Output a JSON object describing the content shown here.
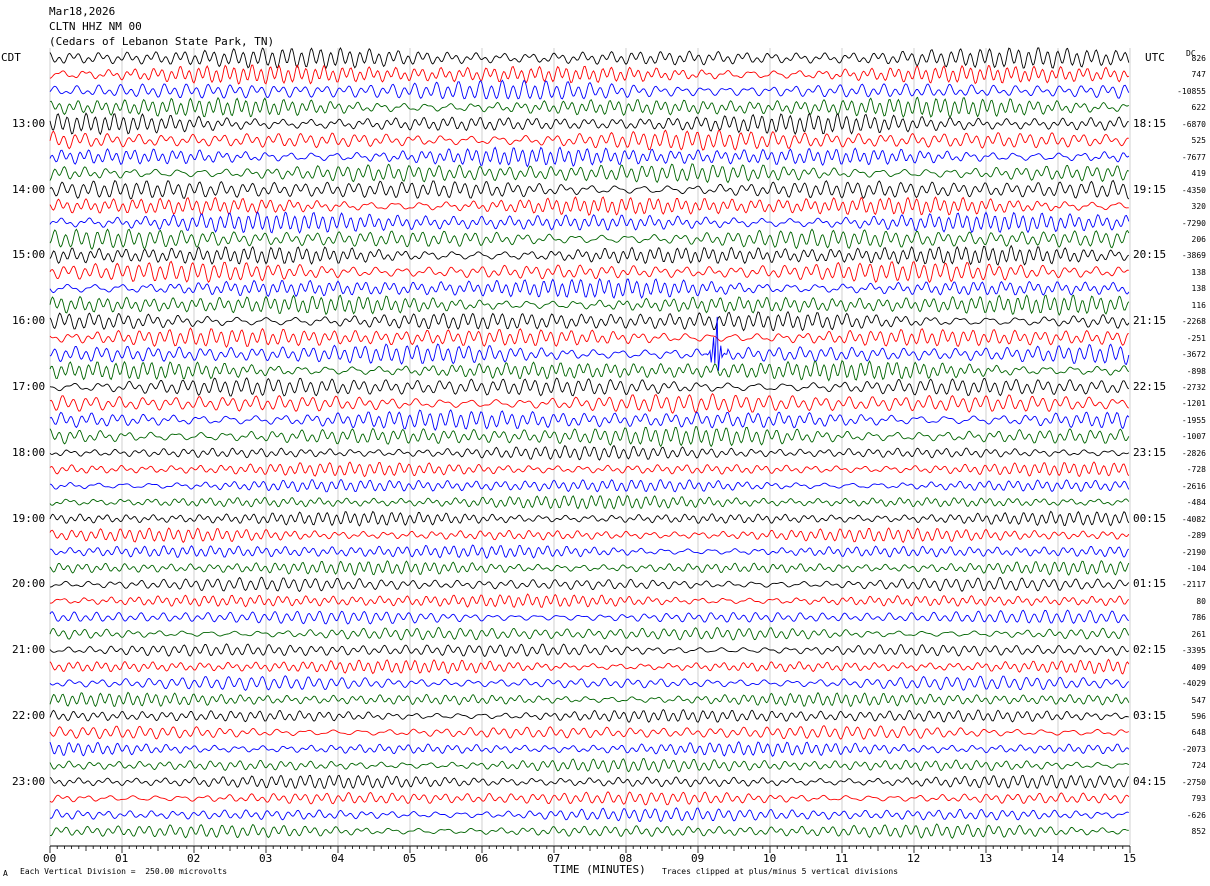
{
  "header": {
    "date": "Mar18,2026",
    "station": "CLTN HHZ NM 00",
    "location": "(Cedars of Lebanon State Park, TN)"
  },
  "left_axis_label": "CDT",
  "right_axis_label": "UTC",
  "dc_label": "DC",
  "footer": {
    "scale_note": "Each Vertical Division =  250.00 microvolts",
    "clip_note": "Traces clipped at plus/minus 5 vertical divisions",
    "corner_mark": "A"
  },
  "chart_data": {
    "type": "line",
    "title": "",
    "xlabel": "TIME (MINUTES)",
    "xlim": [
      0,
      15
    ],
    "x_ticks": [
      "00",
      "01",
      "02",
      "03",
      "04",
      "05",
      "06",
      "07",
      "08",
      "09",
      "10",
      "11",
      "12",
      "13",
      "14",
      "15"
    ],
    "trace_colors": [
      "#000000",
      "#ff0000",
      "#0000ff",
      "#006400"
    ],
    "traces_per_hour": 4,
    "trace_count": 48,
    "left_hour_labels": [
      "13:00",
      "14:00",
      "15:00",
      "16:00",
      "17:00",
      "18:00",
      "19:00",
      "20:00",
      "21:00",
      "22:00",
      "23:00"
    ],
    "right_hour_labels": [
      "18:15",
      "19:15",
      "20:15",
      "21:15",
      "22:15",
      "23:15",
      "00:15",
      "01:15",
      "02:15",
      "03:15",
      "04:15"
    ],
    "dc_offsets": [
      "826",
      "747",
      "-10855",
      "622",
      "-6870",
      "525",
      "-7677",
      "419",
      "-4350",
      "320",
      "-7290",
      "206",
      "-3869",
      "138",
      "138",
      "116",
      "-2268",
      "-251",
      "-3672",
      "-898",
      "-2732",
      "-1201",
      "-1955",
      "-1007",
      "-2826",
      "-728",
      "-2616",
      "-484",
      "-4082",
      "-289",
      "-2190",
      "-104",
      "-2117",
      "80",
      "786",
      "261",
      "-3395",
      "409",
      "-4029",
      "547",
      "596",
      "648",
      "-2073",
      "724",
      "-2750",
      "793",
      "-626",
      "852"
    ],
    "events": [
      {
        "trace": 18,
        "minute": 9.25,
        "note": "clipped spike"
      }
    ]
  }
}
